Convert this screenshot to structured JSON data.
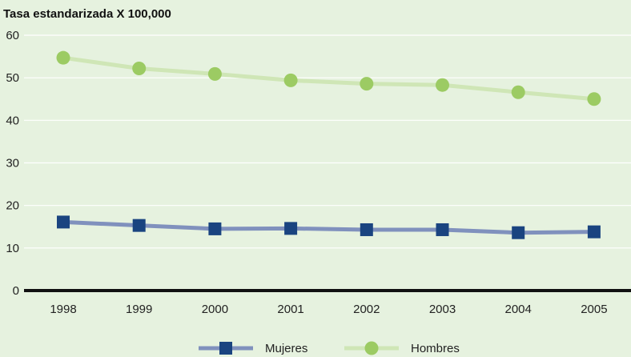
{
  "chart_data": {
    "type": "line",
    "title": "Tasa estandarizada X 100,000",
    "xlabel": "",
    "ylabel": "",
    "categories": [
      "1998",
      "1999",
      "2000",
      "2001",
      "2002",
      "2003",
      "2004",
      "2005"
    ],
    "ylim": [
      0,
      60
    ],
    "yticks": [
      0,
      10,
      20,
      30,
      40,
      50,
      60
    ],
    "grid": true,
    "legend": "bottom",
    "series": [
      {
        "name": "Mujeres",
        "values": [
          16.1,
          15.3,
          14.5,
          14.6,
          14.3,
          14.3,
          13.6,
          13.8
        ],
        "color": "#1a4480",
        "line_color": "#8091bd",
        "marker": "square"
      },
      {
        "name": "Hombres",
        "values": [
          54.7,
          52.2,
          50.9,
          49.4,
          48.6,
          48.3,
          46.6,
          45.0
        ],
        "color": "#9ccb63",
        "line_color": "#cfe6b6",
        "marker": "circle"
      }
    ]
  }
}
